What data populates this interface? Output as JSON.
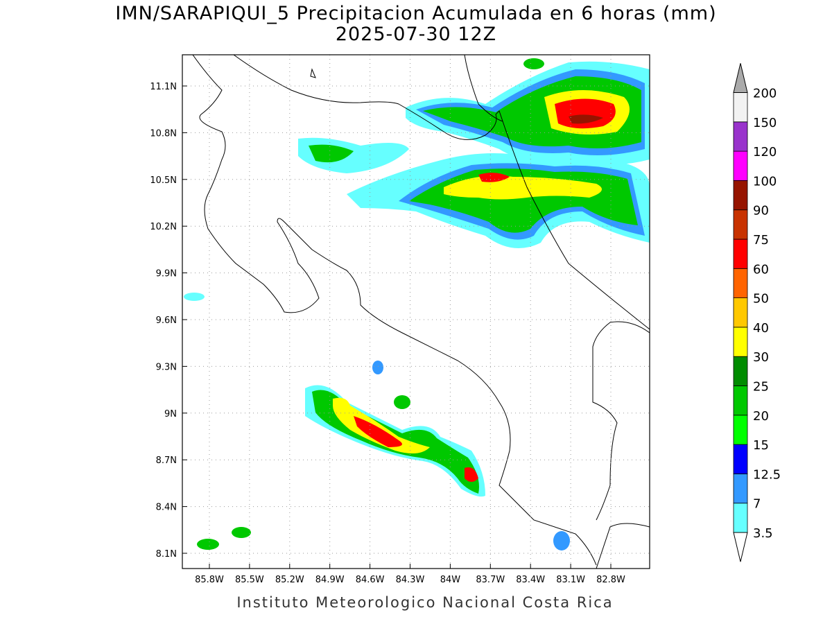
{
  "header": {
    "title": "IMN/SARAPIQUI_5 Precipitacion Acumulada en 6 horas (mm)",
    "subtitle": "2025-07-30 12Z"
  },
  "map": {
    "lat_labels": [
      "11.1N",
      "10.8N",
      "10.5N",
      "10.2N",
      "9.9N",
      "9.6N",
      "9.3N",
      "9N",
      "8.7N",
      "8.4N",
      "8.1N"
    ],
    "lon_labels": [
      "85.8W",
      "85.5W",
      "85.2W",
      "84.9W",
      "84.6W",
      "84.3W",
      "84W",
      "83.7W",
      "83.4W",
      "83.1W",
      "82.8W"
    ]
  },
  "colorbar": {
    "levels": [
      3.5,
      7,
      12.5,
      15,
      20,
      25,
      30,
      40,
      50,
      60,
      75,
      90,
      100,
      120,
      150,
      200
    ],
    "colors": [
      "#66ffff",
      "#3399ff",
      "#0000ff",
      "#00ff00",
      "#00c800",
      "#008c00",
      "#ffff00",
      "#ffc800",
      "#ff6400",
      "#ff0000",
      "#c83200",
      "#961400",
      "#ff00ff",
      "#9933cc",
      "#f2f2f2"
    ],
    "over_color": "#aaaaaa",
    "under_color": "#ffffff"
  },
  "footer": "Instituto Meteorologico Nacional Costa Rica"
}
